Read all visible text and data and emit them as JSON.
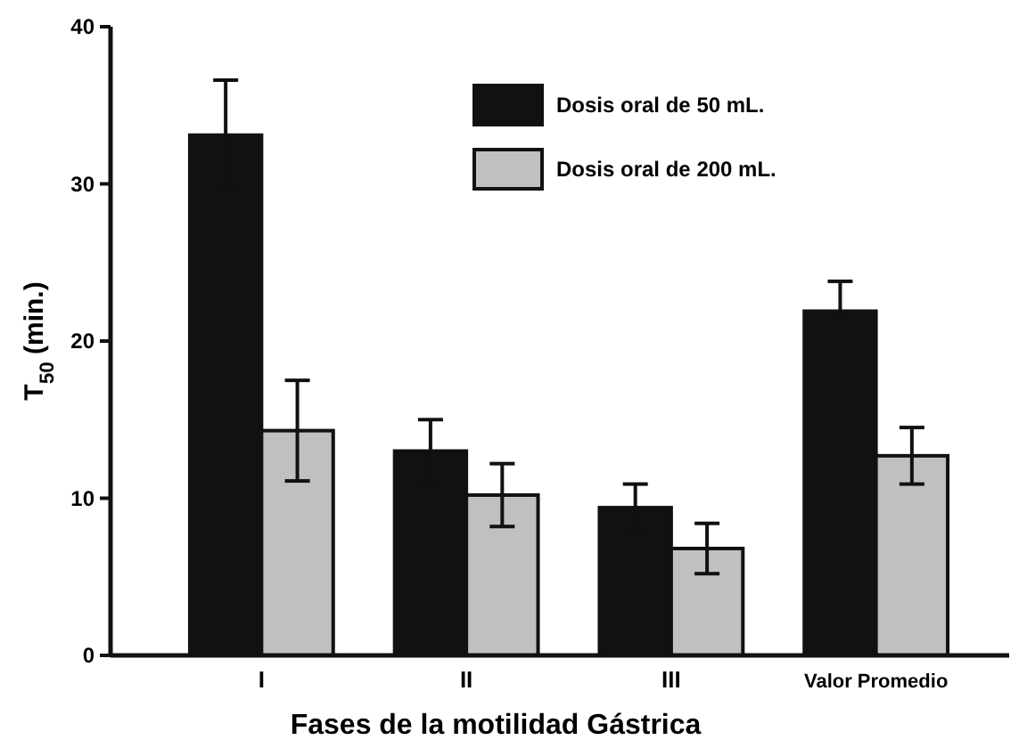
{
  "chart_data": {
    "type": "bar",
    "xlabel": "Fases de la motilidad Gástrica",
    "ylabel": "T$_{50}$ (min.)",
    "categories": [
      "I",
      "II",
      "III",
      "Valor Promedio"
    ],
    "series": [
      {
        "name": "Dosis oral de 50 mL.",
        "color": "#111111",
        "values": [
          33.1,
          13.0,
          9.4,
          21.9
        ],
        "errors": [
          3.5,
          2.0,
          1.5,
          1.9
        ]
      },
      {
        "name": "Dosis oral de 200 mL.",
        "color": "#c0c0c0",
        "values": [
          14.3,
          10.2,
          6.8,
          12.7
        ],
        "errors": [
          3.2,
          2.0,
          1.6,
          1.8
        ]
      }
    ],
    "ylim": [
      0,
      40
    ],
    "yticks": [
      0,
      10,
      20,
      30,
      40
    ],
    "legend": "top right"
  }
}
